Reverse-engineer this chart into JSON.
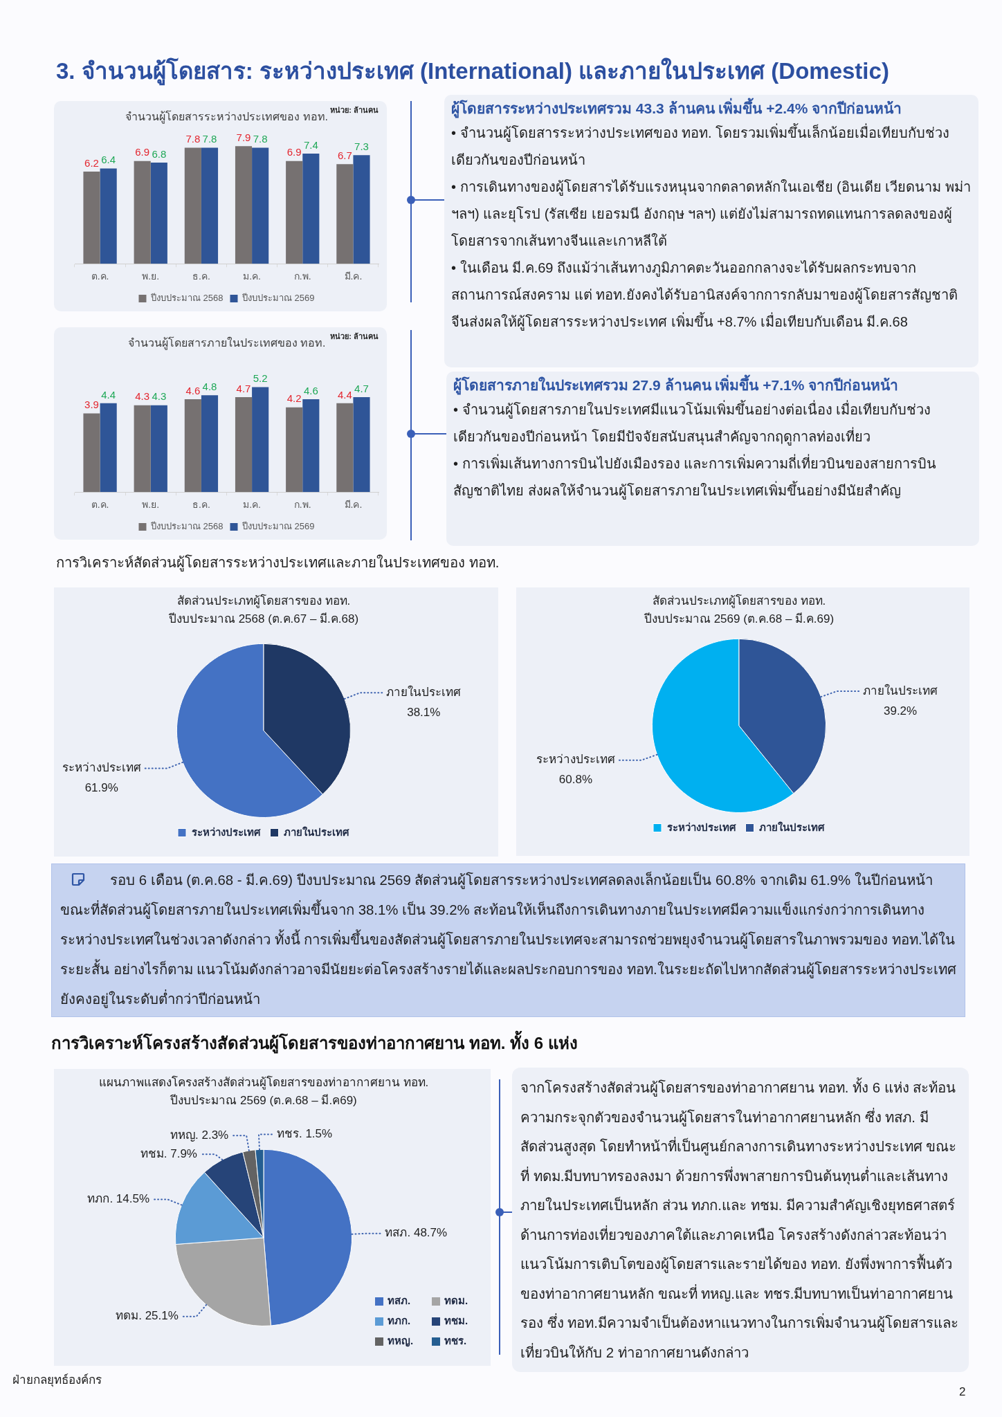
{
  "chart_data": [
    {
      "type": "other",
      "title": "3. จำนวนผู้โดยสาร: ระหว่างประเทศ (International) และภายในประเทศ (Domestic)"
    },
    {
      "type": "bar",
      "title": "จำนวนผู้โดยสารระหว่างประเทศของ ทอท.",
      "annotations": [
        "หน่วย: ล้านคน"
      ],
      "categories": [
        "ต.ค.",
        "พ.ย.",
        "ธ.ค.",
        "ม.ค.",
        "ก.พ.",
        "มี.ค."
      ],
      "series": [
        {
          "name": "ปีงบประมาณ 2568",
          "color": "#767171",
          "values": [
            6.2,
            6.9,
            7.8,
            7.9,
            6.9,
            6.7
          ]
        },
        {
          "name": "ปีงบประมาณ 2569",
          "color": "#2f5597",
          "values": [
            6.4,
            6.8,
            7.8,
            7.8,
            7.4,
            7.3
          ]
        }
      ],
      "data_labels": true,
      "legend": "bottom",
      "tick_labels": "x"
    },
    {
      "type": "other",
      "title": "ผู้โดยสารระหว่างประเทศรวม 43.3 ล้านคน เพิ่มขึ้น +2.4% จากปีก่อนหน้า",
      "annotations": [
        "• จำนวนผู้โดยสารระหว่างประเทศของ ทอท. โดยรวมเพิ่มขึ้นเล็กน้อยเมื่อเทียบกับช่วงเดียวกันของปีก่อนหน้า",
        "• การเดินทางของผู้โดยสารได้รับแรงหนุนจากตลาดหลักในเอเชีย (อินเดีย เวียดนาม พม่า ฯลฯ) และยุโรป (รัสเซีย เยอรมนี อังกฤษ ฯลฯ) แต่ยังไม่สามารถทดแทนการลดลงของผู้โดยสารจากเส้นทางจีนและเกาหลีใต้",
        "• ในเดือน มี.ค.69 ถึงแม้ว่าเส้นทางภูมิภาคตะวันออกกลางจะได้รับผลกระทบจากสถานการณ์สงคราม แต่ ทอท.ยังคงได้รับอานิสงค์จากการกลับมาของผู้โดยสารสัญชาติจีนส่งผลให้ผู้โดยสารระหว่างประเทศ เพิ่มขึ้น +8.7% เมื่อเทียบกับเดือน มี.ค.68"
      ]
    },
    {
      "type": "bar",
      "title": "จำนวนผู้โดยสารภายในประเทศของ ทอท.",
      "annotations": [
        "หน่วย: ล้านคน"
      ],
      "categories": [
        "ต.ค.",
        "พ.ย.",
        "ธ.ค.",
        "ม.ค.",
        "ก.พ.",
        "มี.ค."
      ],
      "series": [
        {
          "name": "ปีงบประมาณ 2568",
          "color": "#767171",
          "values": [
            3.9,
            4.3,
            4.6,
            4.7,
            4.2,
            4.4
          ]
        },
        {
          "name": "ปีงบประมาณ 2569",
          "color": "#2f5597",
          "values": [
            4.4,
            4.3,
            4.8,
            5.2,
            4.6,
            4.7
          ]
        }
      ],
      "data_labels": true,
      "legend": "bottom",
      "tick_labels": "x"
    },
    {
      "type": "other",
      "title": "ผู้โดยสารภายในประเทศรวม 27.9 ล้านคน เพิ่มขึ้น +7.1% จากปีก่อนหน้า",
      "annotations": [
        "• จำนวนผู้โดยสารภายในประเทศมีแนวโน้มเพิ่มขึ้นอย่างต่อเนื่อง เมื่อเทียบกับช่วงเดียวกันของปีก่อนหน้า โดยมีปัจจัยสนับสนุนสำคัญจากฤดูกาลท่องเที่ยว",
        "• การเพิ่มเส้นทางการบินไปยังเมืองรอง และการเพิ่มความถี่เที่ยวบินของสายการบินสัญชาติไทย ส่งผลให้จำนวนผู้โดยสารภายในประเทศเพิ่มขึ้นอย่างมีนัยสำคัญ"
      ]
    },
    {
      "type": "other",
      "title": "การวิเคราะห์สัดส่วนผู้โดยสารระหว่างประเทศและภายในประเทศของ ทอท."
    },
    {
      "type": "pie",
      "title": "สัดส่วนประเภทผู้โดยสารของ ทอท.",
      "subtitle": "ปีงบประมาณ 2568 (ต.ค.67 – มี.ค.68)",
      "categories": [
        "ระหว่างประเทศ",
        "ภายในประเทศ"
      ],
      "values": [
        61.9,
        38.1
      ],
      "value_labels": [
        "61.9%",
        "38.1%"
      ],
      "colors": [
        "#4472c4",
        "#1f3864"
      ],
      "legend": "bottom"
    },
    {
      "type": "pie",
      "title": "สัดส่วนประเภทผู้โดยสารของ ทอท.",
      "subtitle": "ปีงบประมาณ 2569 (ต.ค.68 – มี.ค.69)",
      "categories": [
        "ระหว่างประเทศ",
        "ภายในประเทศ"
      ],
      "values": [
        60.8,
        39.2
      ],
      "value_labels": [
        "60.8%",
        "39.2%"
      ],
      "colors": [
        "#00b0f0",
        "#2f5597"
      ],
      "legend": "bottom"
    },
    {
      "type": "other",
      "annotations": [
        "รอบ 6 เดือน (ต.ค.68 - มี.ค.69) ปีงบประมาณ 2569 สัดส่วนผู้โดยสารระหว่างประเทศลดลงเล็กน้อยเป็น 60.8% จากเดิม 61.9% ในปีก่อนหน้า ขณะที่สัดส่วนผู้โดยสารภายในประเทศเพิ่มขึ้นจาก 38.1% เป็น 39.2% สะท้อนให้เห็นถึงการเดินทางภายในประเทศมีความแข็งแกร่งกว่าการเดินทางระหว่างประเทศในช่วงเวลาดังกล่าว ทั้งนี้ การเพิ่มขึ้นของสัดส่วนผู้โดยสารภายในประเทศจะสามารถช่วยพยุงจำนวนผู้โดยสารในภาพรวมของ ทอท.ได้ในระยะสั้น อย่างไรก็ตาม แนวโน้มดังกล่าวอาจมีนัยยะต่อโครงสร้างรายได้และผลประกอบการของ ทอท.ในระยะถัดไปหากสัดส่วนผู้โดยสารระหว่างประเทศยังคงอยู่ในระดับต่ำกว่าปีก่อนหน้า"
      ]
    },
    {
      "type": "other",
      "title": "การวิเคราะห์โครงสร้างสัดส่วนผู้โดยสารของท่าอากาศยาน ทอท. ทั้ง 6 แห่ง"
    },
    {
      "type": "pie",
      "title": "แผนภาพแสดงโครงสร้างสัดส่วนผู้โดยสารของท่าอากาศยาน ทอท.",
      "subtitle": "ปีงบประมาณ 2569 (ต.ค.68 – มี.ค69)",
      "categories": [
        "ทสภ.",
        "ทดม.",
        "ทภก.",
        "ทชม.",
        "ทหญ.",
        "ทชร."
      ],
      "values": [
        48.7,
        25.1,
        14.5,
        7.9,
        2.3,
        1.5
      ],
      "value_labels": [
        "48.7%",
        "25.1%",
        "14.5%",
        "7.9%",
        "2.3%",
        "1.5%"
      ],
      "colors": [
        "#4472c4",
        "#a5a5a5",
        "#5b9bd5",
        "#264478",
        "#636363",
        "#255e91"
      ],
      "legend": "right"
    },
    {
      "type": "other",
      "annotations": [
        "จากโครงสร้างสัดส่วนผู้โดยสารของท่าอากาศยาน ทอท. ทั้ง 6 แห่ง สะท้อนความกระจุกตัวของจำนวนผู้โดยสารในท่าอากาศยานหลัก ซึ่ง ทสภ. มีสัดส่วนสูงสุด โดยทำหน้าที่เป็นศูนย์กลางการเดินทางระหว่างประเทศ ขณะที่ ทดม.มีบทบาทรองลงมา ด้วยการพึ่งพาสายการบินต้นทุนต่ำและเส้นทางภายในประเทศเป็นหลัก ส่วน ทภก.และ ทชม. มีความสำคัญเชิงยุทธศาสตร์ด้านการท่องเที่ยวของภาคใต้และภาคเหนือ โครงสร้างดังกล่าวสะท้อนว่าแนวโน้มการเติบโตของผู้โดยสารและรายได้ของ ทอท. ยังพึ่งพาการฟื้นตัวของท่าอากาศยานหลัก ขณะที่ ทหญ.และ ทชร.มีบทบาทเป็นท่าอากาศยานรอง ซึ่ง ทอท.มีความจำเป็นต้องหาแนวทางในการเพิ่มจำนวนผู้โดยสารและเที่ยวบินให้กับ 2 ท่าอากาศยานดังกล่าว"
      ]
    },
    {
      "type": "other",
      "annotations": [
        "ฝ่ายกลยุทธ์องค์กร",
        "2"
      ]
    }
  ]
}
